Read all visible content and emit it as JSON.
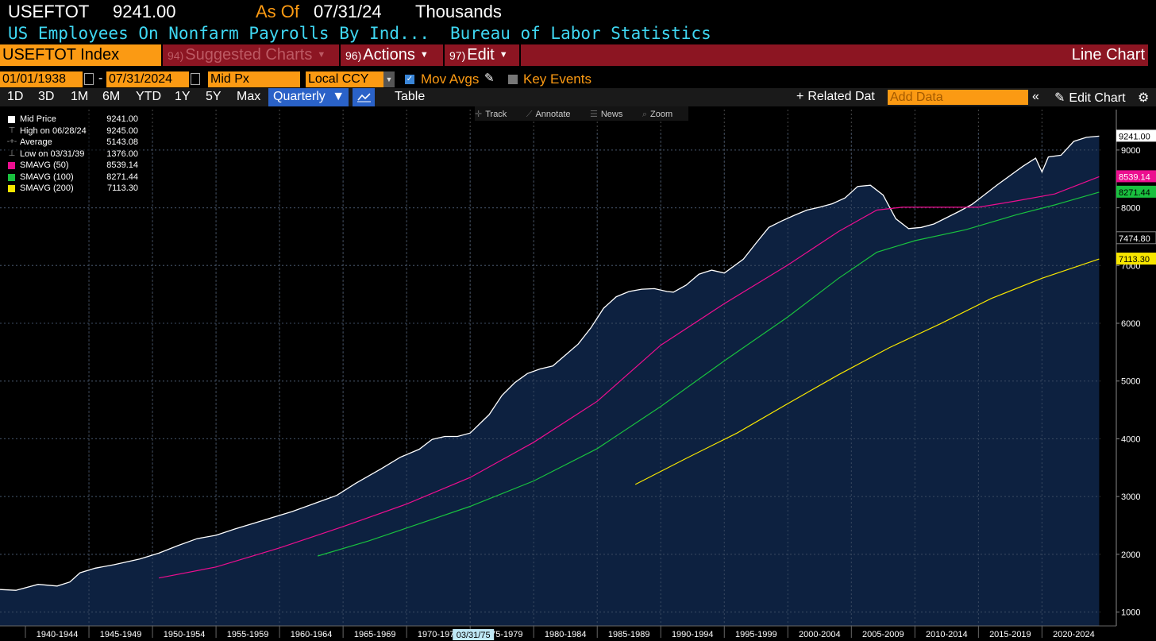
{
  "header": {
    "ticker": "USEFTOT",
    "last": "9241.00",
    "as_of_label": "As Of",
    "as_of_date": "07/31/24",
    "units": "Thousands",
    "description": "US Employees On Nonfarm Payrolls By Ind...",
    "source": "Bureau of Labor Statistics"
  },
  "menu": {
    "security": "USEFTOT Index",
    "items": [
      {
        "num": "94)",
        "label": "Suggested Charts"
      },
      {
        "num": "96)",
        "label": "Actions"
      },
      {
        "num": "97)",
        "label": "Edit"
      }
    ],
    "chart_type": "Line Chart"
  },
  "controls": {
    "start_date": "01/01/1938",
    "date_sep": "-",
    "end_date": "07/31/2024",
    "price_type": "Mid Px",
    "currency": "Local CCY",
    "mov_avgs_label": "Mov Avgs",
    "mov_avgs_checked": true,
    "key_events_label": "Key Events",
    "key_events_checked": false
  },
  "periods": {
    "buttons": [
      "1D",
      "3D",
      "1M",
      "6M",
      "YTD",
      "1Y",
      "5Y",
      "Max"
    ],
    "frequency": "Quarterly",
    "table_label": "Table",
    "related_label": "Related Dat",
    "add_data_placeholder": "Add Data",
    "edit_chart_label": "Edit Chart"
  },
  "chart_tools": [
    "Track",
    "Annotate",
    "News",
    "Zoom"
  ],
  "legend": [
    {
      "label": "Mid Price",
      "value": "9241.00",
      "color": "#ffffff",
      "glyph": "box"
    },
    {
      "label": "High on 06/28/24",
      "value": "9245.00",
      "color": "#999999",
      "glyph": "high"
    },
    {
      "label": "Average",
      "value": "5143.08",
      "color": "#999999",
      "glyph": "avg"
    },
    {
      "label": "Low on 03/31/39",
      "value": "1376.00",
      "color": "#999999",
      "glyph": "low"
    },
    {
      "label": "SMAVG (50)",
      "value": "8539.14",
      "color": "#ec0e8f",
      "glyph": "box"
    },
    {
      "label": "SMAVG (100)",
      "value": "8271.44",
      "color": "#19c13f",
      "glyph": "box"
    },
    {
      "label": "SMAVG (200)",
      "value": "7113.30",
      "color": "#f7e600",
      "glyph": "box"
    }
  ],
  "value_tags": [
    {
      "label": "9241.00",
      "value": 9241,
      "bg": "#ffffff",
      "fg": "#000000"
    },
    {
      "label": "8539.14",
      "value": 8539.14,
      "bg": "#ec0e8f",
      "fg": "#ffffff"
    },
    {
      "label": "8271.44",
      "value": 8271.44,
      "bg": "#19c13f",
      "fg": "#000000"
    },
    {
      "label": "7474.80",
      "value": 7474.8,
      "bg": "#000000",
      "fg": "#ffffff"
    },
    {
      "label": "7113.30",
      "value": 7113.3,
      "bg": "#f7e600",
      "fg": "#000000"
    }
  ],
  "crosshair_date": "03/31/75",
  "colors": {
    "orange": "#fb9a13",
    "menu_red": "#8c1522",
    "cyan": "#3fd7f2",
    "area_fill": "#0d2140",
    "price_line": "#ffffff",
    "sma50": "#ec0e8f",
    "sma100": "#19c13f",
    "sma200": "#f7e600"
  },
  "chart_data": {
    "type": "area",
    "x_tick_labels": [
      "1940-1944",
      "1945-1949",
      "1950-1954",
      "1955-1959",
      "1960-1964",
      "1965-1969",
      "1970-1974",
      "1975-1979",
      "1980-1984",
      "1985-1989",
      "1990-1994",
      "1995-1999",
      "2000-2004",
      "2005-2009",
      "2010-2014",
      "2015-2019",
      "2020-2024"
    ],
    "y_ticks": [
      1000,
      2000,
      3000,
      4000,
      5000,
      6000,
      7000,
      8000,
      9000
    ],
    "xlim": [
      1938.0,
      2024.6
    ],
    "ylim": [
      760,
      9700
    ],
    "grid": true,
    "series": [
      {
        "name": "Mid Price",
        "style": "area",
        "points": [
          [
            1938.0,
            1390
          ],
          [
            1939.25,
            1376
          ],
          [
            1941.0,
            1480
          ],
          [
            1942.5,
            1450
          ],
          [
            1943.5,
            1520
          ],
          [
            1944.3,
            1680
          ],
          [
            1945.5,
            1760
          ],
          [
            1947.0,
            1820
          ],
          [
            1949.0,
            1920
          ],
          [
            1950.5,
            2020
          ],
          [
            1952.0,
            2150
          ],
          [
            1953.5,
            2270
          ],
          [
            1955.0,
            2330
          ],
          [
            1956.5,
            2440
          ],
          [
            1958.0,
            2540
          ],
          [
            1959.5,
            2640
          ],
          [
            1961.0,
            2740
          ],
          [
            1963.0,
            2900
          ],
          [
            1964.5,
            3020
          ],
          [
            1966.0,
            3230
          ],
          [
            1968.0,
            3480
          ],
          [
            1969.5,
            3680
          ],
          [
            1971.0,
            3820
          ],
          [
            1972.0,
            3990
          ],
          [
            1973.0,
            4040
          ],
          [
            1974.0,
            4040
          ],
          [
            1975.0,
            4100
          ],
          [
            1976.5,
            4420
          ],
          [
            1977.5,
            4750
          ],
          [
            1978.5,
            4970
          ],
          [
            1979.5,
            5130
          ],
          [
            1980.5,
            5210
          ],
          [
            1981.5,
            5260
          ],
          [
            1982.5,
            5450
          ],
          [
            1983.5,
            5640
          ],
          [
            1984.5,
            5920
          ],
          [
            1985.5,
            6260
          ],
          [
            1986.5,
            6460
          ],
          [
            1987.5,
            6550
          ],
          [
            1988.5,
            6590
          ],
          [
            1989.5,
            6600
          ],
          [
            1990.5,
            6550
          ],
          [
            1991.0,
            6540
          ],
          [
            1992.0,
            6660
          ],
          [
            1993.0,
            6850
          ],
          [
            1994.0,
            6920
          ],
          [
            1995.0,
            6870
          ],
          [
            1996.5,
            7110
          ],
          [
            1997.5,
            7390
          ],
          [
            1998.5,
            7660
          ],
          [
            1999.5,
            7770
          ],
          [
            2000.5,
            7870
          ],
          [
            2001.5,
            7960
          ],
          [
            2002.5,
            8010
          ],
          [
            2003.5,
            8070
          ],
          [
            2004.5,
            8170
          ],
          [
            2005.5,
            8370
          ],
          [
            2006.5,
            8390
          ],
          [
            2007.5,
            8220
          ],
          [
            2008.5,
            7810
          ],
          [
            2009.5,
            7640
          ],
          [
            2010.5,
            7660
          ],
          [
            2011.5,
            7720
          ],
          [
            2012.5,
            7830
          ],
          [
            2013.5,
            7940
          ],
          [
            2014.5,
            8060
          ],
          [
            2015.5,
            8230
          ],
          [
            2016.5,
            8400
          ],
          [
            2017.5,
            8560
          ],
          [
            2018.5,
            8720
          ],
          [
            2019.5,
            8860
          ],
          [
            2020.0,
            8620
          ],
          [
            2020.5,
            8880
          ],
          [
            2021.5,
            8910
          ],
          [
            2022.5,
            9150
          ],
          [
            2023.5,
            9220
          ],
          [
            2024.5,
            9241
          ]
        ]
      },
      {
        "name": "SMAVG (50)",
        "style": "line",
        "points": [
          [
            1950.5,
            1590
          ],
          [
            1955.0,
            1780
          ],
          [
            1960.0,
            2110
          ],
          [
            1965.0,
            2480
          ],
          [
            1970.0,
            2870
          ],
          [
            1975.0,
            3330
          ],
          [
            1980.0,
            3940
          ],
          [
            1985.0,
            4650
          ],
          [
            1990.0,
            5620
          ],
          [
            1995.0,
            6340
          ],
          [
            2000.0,
            7010
          ],
          [
            2004.0,
            7590
          ],
          [
            2007.0,
            7960
          ],
          [
            2009.0,
            8010
          ],
          [
            2012.0,
            8010
          ],
          [
            2015.0,
            8010
          ],
          [
            2018.0,
            8120
          ],
          [
            2021.0,
            8240
          ],
          [
            2024.5,
            8539
          ]
        ]
      },
      {
        "name": "SMAVG (100)",
        "style": "line",
        "points": [
          [
            1963.0,
            1970
          ],
          [
            1967.0,
            2230
          ],
          [
            1971.0,
            2530
          ],
          [
            1975.0,
            2830
          ],
          [
            1980.0,
            3270
          ],
          [
            1985.0,
            3830
          ],
          [
            1990.0,
            4560
          ],
          [
            1995.0,
            5350
          ],
          [
            2000.0,
            6110
          ],
          [
            2004.0,
            6780
          ],
          [
            2007.0,
            7230
          ],
          [
            2010.0,
            7430
          ],
          [
            2014.0,
            7620
          ],
          [
            2018.0,
            7880
          ],
          [
            2021.0,
            8050
          ],
          [
            2024.5,
            8271
          ]
        ]
      },
      {
        "name": "SMAVG (200)",
        "style": "line",
        "points": [
          [
            1988.0,
            3210
          ],
          [
            1992.0,
            3660
          ],
          [
            1996.0,
            4100
          ],
          [
            2000.0,
            4610
          ],
          [
            2004.0,
            5110
          ],
          [
            2008.0,
            5580
          ],
          [
            2012.0,
            5990
          ],
          [
            2016.0,
            6430
          ],
          [
            2020.0,
            6780
          ],
          [
            2024.5,
            7113
          ]
        ]
      }
    ]
  }
}
